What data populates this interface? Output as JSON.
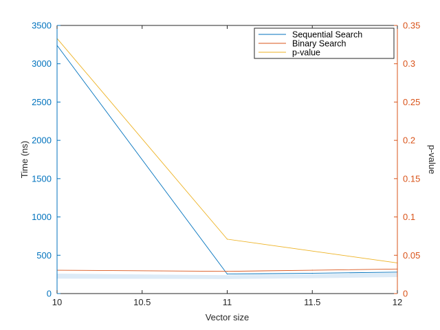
{
  "chart_data": {
    "type": "line",
    "title": "",
    "xlabel": "Vector size",
    "ylabel_left": "Time (ns)",
    "ylabel_right": "p-value",
    "xlim": [
      10,
      12
    ],
    "ylim_left": [
      0,
      3500
    ],
    "ylim_right": [
      0,
      0.35
    ],
    "x_ticks": [
      "10",
      "10.5",
      "11",
      "11.5",
      "12"
    ],
    "y_ticks_left": [
      "0",
      "500",
      "1000",
      "1500",
      "2000",
      "2500",
      "3000",
      "3500"
    ],
    "y_ticks_right": [
      "0",
      "0.05",
      "0.1",
      "0.15",
      "0.2",
      "0.25",
      "0.3",
      "0.35"
    ],
    "grid": false,
    "legend_position": "top-right",
    "colors": {
      "left_axis": "#0072BD",
      "right_axis": "#D95319",
      "axis": "#262626",
      "band": "#DDEBF7"
    },
    "series": [
      {
        "name": "Sequential Search",
        "axis": "left",
        "color": "#0072BD",
        "x": [
          10,
          11,
          11.5,
          12
        ],
        "values": [
          3240,
          255,
          265,
          280
        ],
        "band_lower": [
          195,
          190,
          200,
          215
        ],
        "band_upper": [
          260,
          240,
          255,
          270
        ]
      },
      {
        "name": "Binary Search",
        "axis": "left",
        "color": "#D95319",
        "x": [
          10,
          11,
          11.5,
          12
        ],
        "values": [
          305,
          290,
          305,
          320
        ]
      },
      {
        "name": "p-value",
        "axis": "right",
        "color": "#EDB120",
        "x": [
          10,
          11,
          12
        ],
        "values": [
          0.333,
          0.071,
          0.04
        ]
      }
    ]
  }
}
